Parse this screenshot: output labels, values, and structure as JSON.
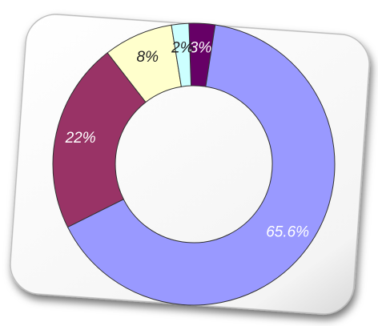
{
  "chart_data": {
    "type": "donut",
    "categories": [
      "3%",
      "65.6%",
      "22%",
      "8%",
      "2%"
    ],
    "values": [
      3,
      65.6,
      22,
      8,
      2
    ],
    "value_labels": [
      "3%",
      "65.6%",
      "22%",
      "8%",
      "2%"
    ],
    "colors": [
      "#660066",
      "#9999ff",
      "#993366",
      "#ffffcc",
      "#ccffff"
    ]
  }
}
